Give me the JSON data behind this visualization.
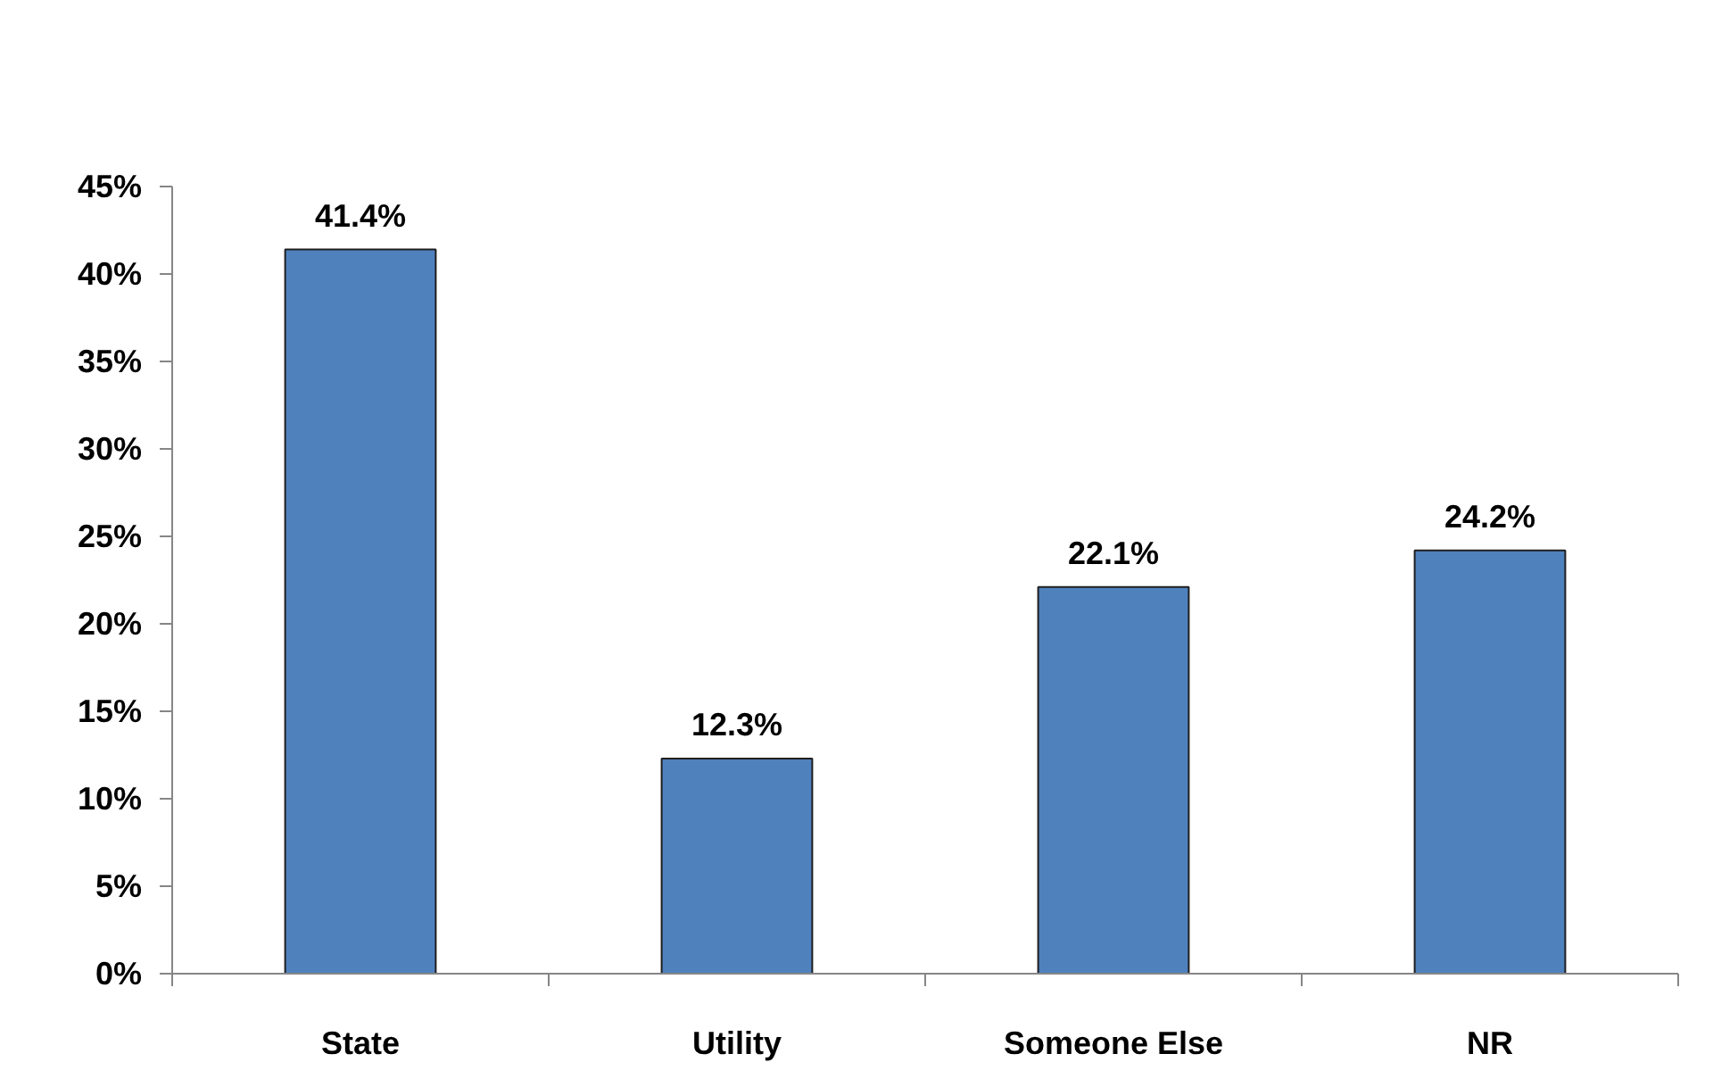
{
  "chart_data": {
    "type": "bar",
    "categories": [
      "State",
      "Utility",
      "Someone Else",
      "NR"
    ],
    "values": [
      41.4,
      12.3,
      22.1,
      24.2
    ],
    "value_labels": [
      "41.4%",
      "12.3%",
      "22.1%",
      "24.2%"
    ],
    "color": "#4f81bd",
    "ylim": [
      0,
      45
    ],
    "yticks": [
      {
        "value": 0,
        "label": "0%"
      },
      {
        "value": 5,
        "label": "5%"
      },
      {
        "value": 10,
        "label": "10%"
      },
      {
        "value": 15,
        "label": "15%"
      },
      {
        "value": 20,
        "label": "20%"
      },
      {
        "value": 25,
        "label": "25%"
      },
      {
        "value": 30,
        "label": "30%"
      },
      {
        "value": 35,
        "label": "35%"
      },
      {
        "value": 40,
        "label": "40%"
      },
      {
        "value": 45,
        "label": "45%"
      }
    ],
    "grid": false
  }
}
